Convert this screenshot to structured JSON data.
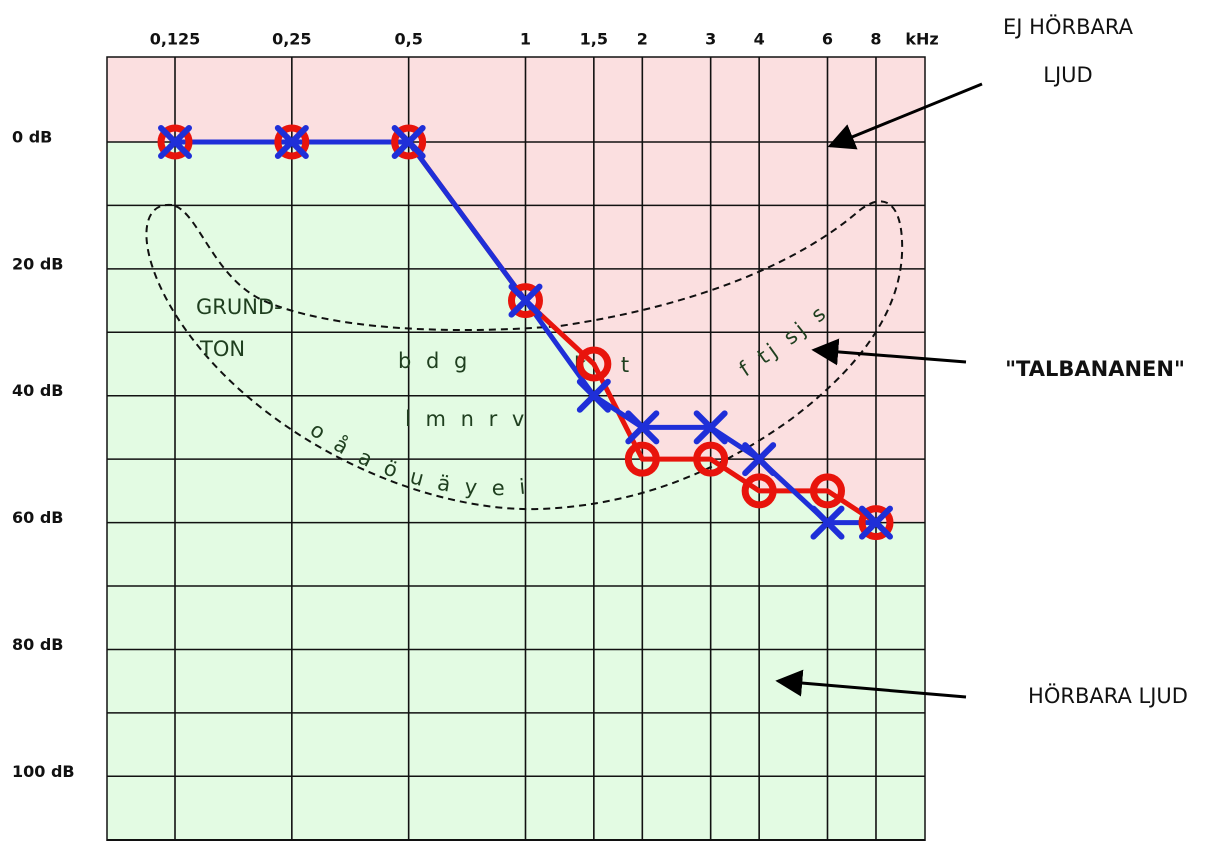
{
  "chart_data": {
    "type": "line",
    "x_label": "kHz",
    "x": [
      0.125,
      0.25,
      0.5,
      1,
      1.5,
      2,
      3,
      4,
      6,
      8
    ],
    "xscale": "log",
    "xlim": [
      0.0835,
      10.7
    ],
    "xticks": [
      {
        "value": 0.125,
        "label": "0,125"
      },
      {
        "value": 0.25,
        "label": "0,25"
      },
      {
        "value": 0.5,
        "label": "0,5"
      },
      1,
      {
        "value": 1.5,
        "label": "1,5"
      },
      2,
      3,
      4,
      6,
      8
    ],
    "ylim": [
      -13.4,
      110.2
    ],
    "y_inverted": true,
    "yticks": [
      {
        "value": 0,
        "label": "0 dB"
      },
      {
        "value": 20,
        "label": "20 dB"
      },
      {
        "value": 40,
        "label": "40 dB"
      },
      {
        "value": 60,
        "label": "60 dB"
      },
      {
        "value": 80,
        "label": "80 dB"
      },
      {
        "value": 100,
        "label": "100 dB"
      }
    ],
    "yminor": [
      10,
      30,
      50,
      70,
      90,
      110
    ],
    "grid": true,
    "region_colors": {
      "above": "#fbdfe0",
      "below": "#e3fbe3"
    },
    "series": [
      {
        "color": "#e8140c",
        "marker": "o",
        "values": [
          0,
          0,
          0,
          25,
          35,
          50,
          50,
          55,
          55,
          60
        ]
      },
      {
        "color": "#1f2fd8",
        "marker": "x",
        "values": [
          0,
          0,
          0,
          25,
          40,
          45,
          45,
          50,
          60,
          60
        ]
      }
    ],
    "annotations": [
      "EJ HÖRBARA",
      "LJUD",
      "\"TALBANANEN\"",
      "HÖRBARA LJUD"
    ],
    "speech_sounds": [
      "GRUND-",
      "TON",
      "b d g",
      "k t",
      "l m n r v",
      "o å a ö u ä y e i",
      "f tj sj s"
    ]
  }
}
